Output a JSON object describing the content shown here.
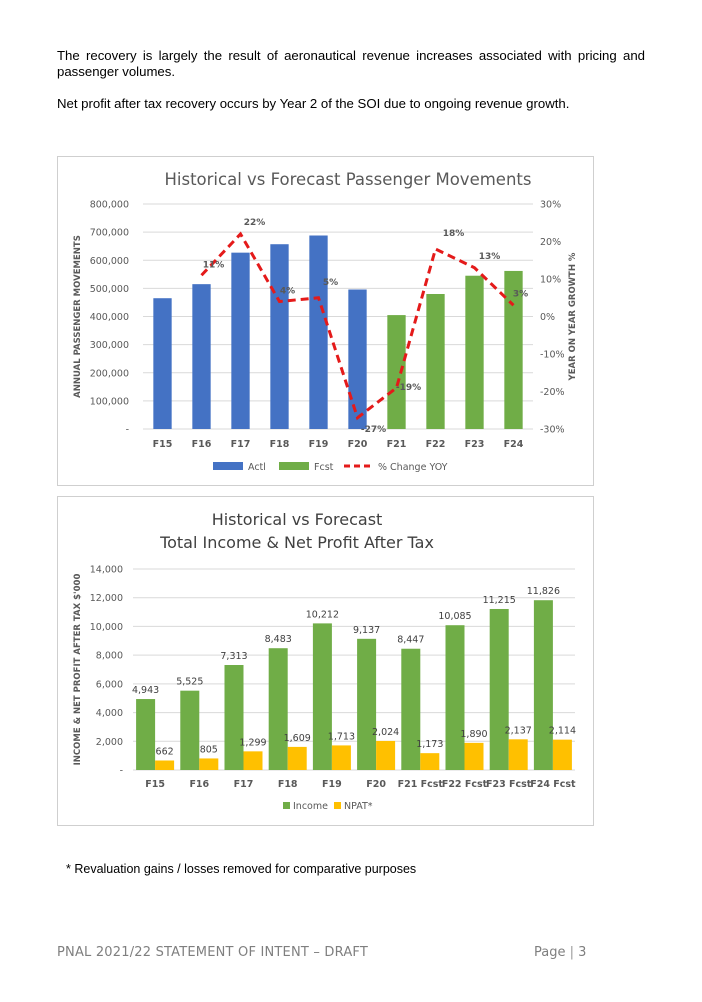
{
  "paragraphs": [
    "The recovery is largely the result of aeronautical revenue increases associated with pricing and passenger volumes.",
    "Net profit after tax recovery occurs by Year 2 of the SOI due to ongoing revenue growth."
  ],
  "footnote": "* Revaluation gains / losses removed for comparative purposes",
  "footer": {
    "left": "PNAL 2021/22 STATEMENT OF INTENT – DRAFT",
    "page_label": "Page",
    "page_number": "3"
  },
  "colors": {
    "actual": "#4472C4",
    "forecast": "#70AD47",
    "change_line": "#E41A1A",
    "npat": "#FFC000"
  },
  "chart_data": [
    {
      "type": "bar",
      "title": "Historical vs Forecast Passenger Movements",
      "ylabel": "ANNUAL PASSENGER MOVEMENTS",
      "y2label": "YEAR ON YEAR GROWTH %",
      "categories": [
        "F15",
        "F16",
        "F17",
        "F18",
        "F19",
        "F20",
        "F21",
        "F22",
        "F23",
        "F24"
      ],
      "ylim": [
        0,
        800000
      ],
      "yticks": [
        "-",
        "100,000",
        "200,000",
        "300,000",
        "400,000",
        "500,000",
        "600,000",
        "700,000",
        "800,000"
      ],
      "y2lim": [
        -30,
        30
      ],
      "y2ticks": [
        "-30%",
        "-20%",
        "-10%",
        "0%",
        "10%",
        "20%",
        "30%"
      ],
      "grid": true,
      "legend_position": "bottom",
      "series": [
        {
          "name": "Actl",
          "kind": "bar",
          "values": [
            465000,
            515000,
            627000,
            657000,
            688000,
            496000,
            null,
            null,
            null,
            null
          ]
        },
        {
          "name": "Fcst",
          "kind": "bar",
          "values": [
            null,
            null,
            null,
            null,
            null,
            null,
            405000,
            480000,
            545000,
            562000
          ]
        },
        {
          "name": "% Change YOY",
          "kind": "line",
          "axis": "secondary",
          "values": [
            null,
            11,
            22,
            4,
            5,
            -27,
            -19,
            18,
            13,
            3
          ],
          "labels": [
            "",
            "11%",
            "22%",
            "4%",
            "5%",
            "-27%",
            "-19%",
            "18%",
            "13%",
            "3%"
          ]
        }
      ]
    },
    {
      "type": "bar",
      "title": [
        "Historical vs Forecast",
        "Total Income & Net Profit After Tax"
      ],
      "ylabel": "INCOME & NET PROFIT AFTER TAX $'000",
      "categories": [
        "F15",
        "F16",
        "F17",
        "F18",
        "F19",
        "F20",
        "F21 Fcst",
        "F22 Fcst",
        "F23 Fcst",
        "F24 Fcst"
      ],
      "ylim": [
        0,
        14000
      ],
      "yticks": [
        "-",
        "2,000",
        "4,000",
        "6,000",
        "8,000",
        "10,000",
        "12,000",
        "14,000"
      ],
      "grid": true,
      "legend_position": "bottom",
      "series": [
        {
          "name": "Income",
          "values": [
            4943,
            5525,
            7313,
            8483,
            10212,
            9137,
            8447,
            10085,
            11215,
            11826
          ],
          "labels": [
            "4,943",
            "5,525",
            "7,313",
            "8,483",
            "10,212",
            "9,137",
            "8,447",
            "10,085",
            "11,215",
            "11,826"
          ]
        },
        {
          "name": "NPAT*",
          "values": [
            662,
            805,
            1299,
            1609,
            1713,
            2024,
            1173,
            1890,
            2137,
            2114
          ],
          "labels": [
            "662",
            "805",
            "1,299",
            "1,609",
            "1,713",
            "2,024",
            "1,173",
            "1,890",
            "2,137",
            "2,114"
          ]
        }
      ]
    }
  ]
}
